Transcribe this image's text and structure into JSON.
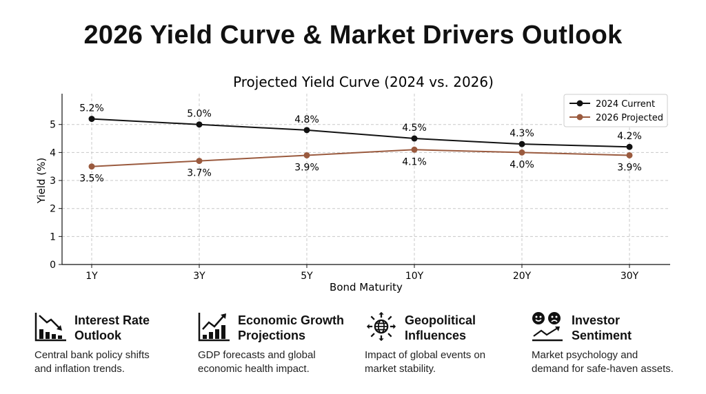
{
  "title": "2026 Yield Curve & Market Drivers Outlook",
  "chart_data": {
    "type": "line",
    "title": "Projected Yield Curve (2024 vs. 2026)",
    "xlabel": "Bond Maturity",
    "ylabel": "Yield (%)",
    "categories": [
      "1Y",
      "3Y",
      "5Y",
      "10Y",
      "20Y",
      "30Y"
    ],
    "ylim": [
      0,
      6.1
    ],
    "yticks": [
      0,
      1,
      2,
      3,
      4,
      5
    ],
    "grid": true,
    "legend_position": "top-right",
    "series": [
      {
        "name": "2024 Current",
        "color": "#111111",
        "values": [
          5.2,
          5.0,
          4.8,
          4.5,
          4.3,
          4.2
        ],
        "labels": [
          "5.2%",
          "5.0%",
          "4.8%",
          "4.5%",
          "4.3%",
          "4.2%"
        ]
      },
      {
        "name": "2026 Projected",
        "color": "#9a5a3e",
        "values": [
          3.5,
          3.7,
          3.9,
          4.1,
          4.0,
          3.9
        ],
        "labels": [
          "3.5%",
          "3.7%",
          "3.9%",
          "4.1%",
          "4.0%",
          "3.9%"
        ]
      }
    ]
  },
  "drivers": [
    {
      "icon": "declining-bar-chart-icon",
      "title_1": "Interest Rate",
      "title_2": "Outlook",
      "desc_1": "Central bank policy shifts",
      "desc_2": "and inflation trends."
    },
    {
      "icon": "growth-bar-chart-icon",
      "title_1": "Economic Growth",
      "title_2": "Projections",
      "desc_1": "GDP forecasts and global",
      "desc_2": "economic health impact."
    },
    {
      "icon": "globe-arrows-icon",
      "title_1": "Geopolitical",
      "title_2": "Influences",
      "desc_1": "Impact of global events on",
      "desc_2": "market stability."
    },
    {
      "icon": "happy-sad-faces-trend-icon",
      "title_1": "Investor",
      "title_2": "Sentiment",
      "desc_1": "Market psychology and",
      "desc_2": "demand for safe-haven assets."
    }
  ]
}
